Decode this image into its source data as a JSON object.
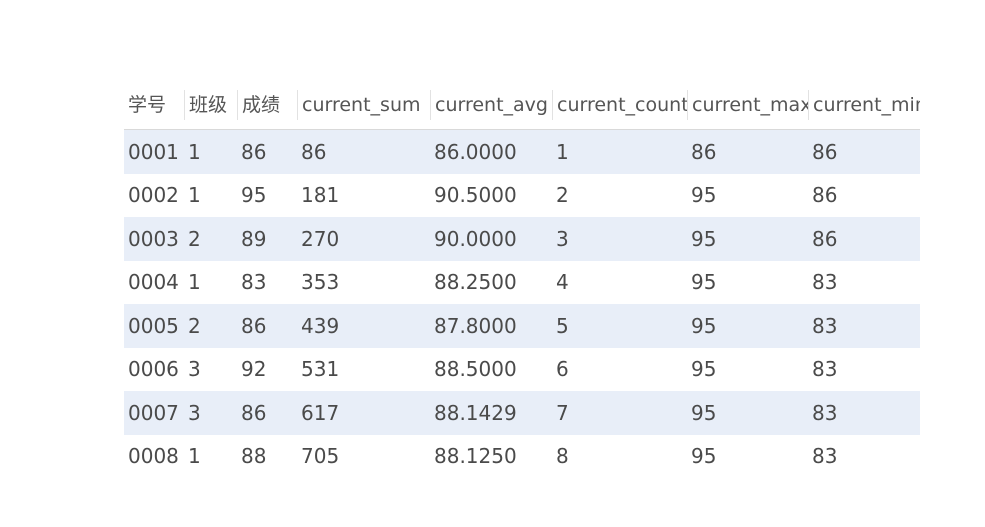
{
  "grid": {
    "columns": [
      "学号",
      "班级",
      "成绩",
      "current_sum",
      "current_avg",
      "current_count",
      "current_max",
      "current_min"
    ],
    "rows": [
      [
        "0001",
        "1",
        "86",
        "86",
        "86.0000",
        "1",
        "86",
        "86"
      ],
      [
        "0002",
        "1",
        "95",
        "181",
        "90.5000",
        "2",
        "95",
        "86"
      ],
      [
        "0003",
        "2",
        "89",
        "270",
        "90.0000",
        "3",
        "95",
        "86"
      ],
      [
        "0004",
        "1",
        "83",
        "353",
        "88.2500",
        "4",
        "95",
        "83"
      ],
      [
        "0005",
        "2",
        "86",
        "439",
        "87.8000",
        "5",
        "95",
        "83"
      ],
      [
        "0006",
        "3",
        "92",
        "531",
        "88.5000",
        "6",
        "95",
        "83"
      ],
      [
        "0007",
        "3",
        "86",
        "617",
        "88.1429",
        "7",
        "95",
        "83"
      ],
      [
        "0008",
        "1",
        "88",
        "705",
        "88.1250",
        "8",
        "95",
        "83"
      ]
    ]
  },
  "colors": {
    "alt_row": "#e8eef8",
    "text": "#4a4a4a",
    "header_border": "#d9d9d9"
  }
}
